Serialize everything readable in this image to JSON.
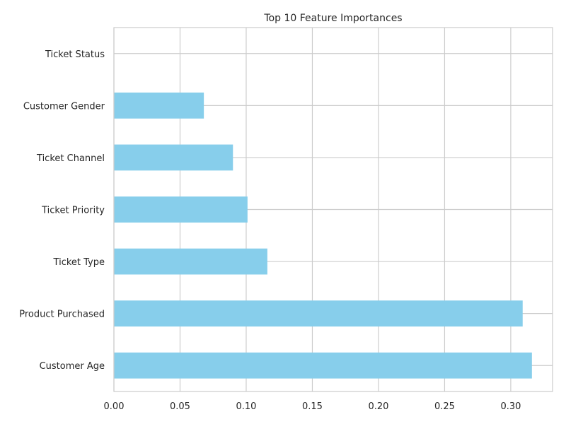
{
  "chart_data": {
    "type": "bar",
    "orientation": "horizontal",
    "title": "Top 10 Feature Importances",
    "xlabel": "",
    "ylabel": "",
    "categories": [
      "Customer Age",
      "Product Purchased",
      "Ticket Type",
      "Ticket Priority",
      "Ticket Channel",
      "Customer Gender",
      "Ticket Status"
    ],
    "values": [
      0.316,
      0.309,
      0.116,
      0.101,
      0.09,
      0.068,
      0.0
    ],
    "xlim": [
      0,
      0.3316
    ],
    "xticks": [
      0.0,
      0.05,
      0.1,
      0.15,
      0.2,
      0.25,
      0.3
    ],
    "xtick_labels": [
      "0.00",
      "0.05",
      "0.10",
      "0.15",
      "0.20",
      "0.25",
      "0.30"
    ],
    "grid": true,
    "colors": {
      "bar": "#87ceeb",
      "grid": "#cccccc",
      "text": "#262626"
    }
  }
}
